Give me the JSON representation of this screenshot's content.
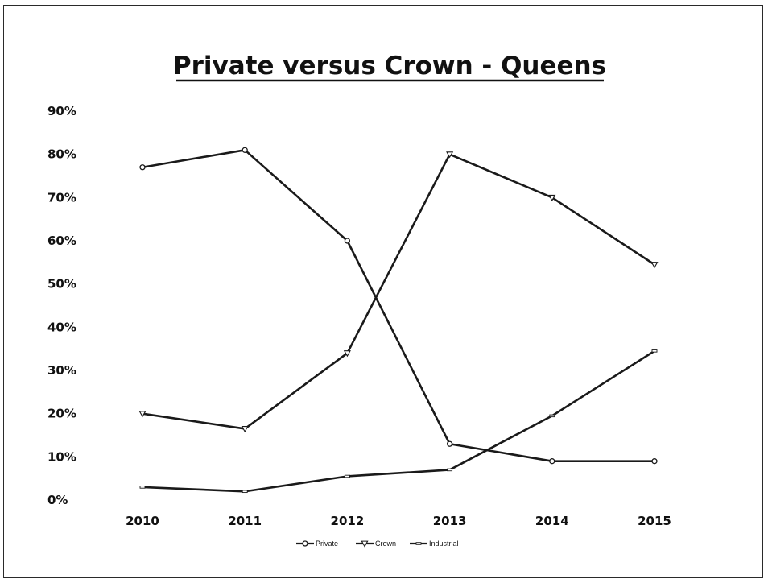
{
  "chart_data": {
    "type": "line",
    "title": "Private versus Crown - Queens",
    "categories": [
      "2010",
      "2011",
      "2012",
      "2013",
      "2014",
      "2015"
    ],
    "y_tick_labels": [
      "0%",
      "10%",
      "20%",
      "30%",
      "40%",
      "50%",
      "60%",
      "70%",
      "80%",
      "90%"
    ],
    "ylim": [
      0,
      90
    ],
    "grid": false,
    "legend_position": "bottom",
    "series": [
      {
        "name": "Private",
        "values": [
          77,
          81,
          60,
          13,
          9,
          9
        ]
      },
      {
        "name": "Crown",
        "values": [
          20,
          16.5,
          34,
          80,
          70,
          54.5
        ]
      },
      {
        "name": "Industrial",
        "values": [
          3,
          2,
          5.5,
          7,
          19.5,
          34.5
        ]
      }
    ],
    "colors": {
      "line": "#1a1a1a",
      "marker_fill": "#ffffff"
    }
  }
}
